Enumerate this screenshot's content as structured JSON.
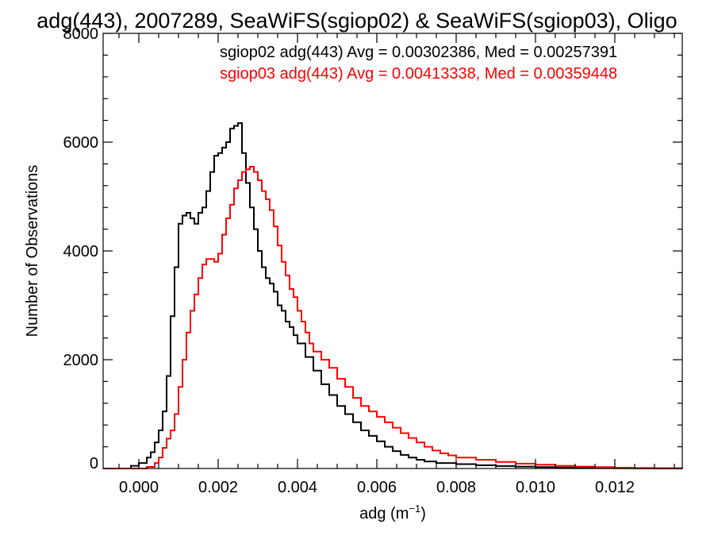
{
  "chart_data": {
    "type": "line",
    "title": "adg(443), 2007289, SeaWiFS(sgiop02) & SeaWiFS(sgiop03), Oligo",
    "xlabel": "adg (m",
    "xlabel_sup": "−1",
    "xlabel_close": ")",
    "ylabel": "Number of Observations",
    "xlim": [
      -0.0009,
      0.0137
    ],
    "ylim": [
      0,
      8000
    ],
    "xticks": [
      0.0,
      0.002,
      0.004,
      0.006,
      0.008,
      0.01,
      0.012
    ],
    "xtick_labels": [
      "0.000",
      "0.002",
      "0.004",
      "0.006",
      "0.008",
      "0.010",
      "0.012"
    ],
    "yticks": [
      0,
      2000,
      4000,
      6000,
      8000
    ],
    "ytick_labels": [
      "0",
      "2000",
      "4000",
      "6000",
      "8000"
    ],
    "grid": false,
    "legend_position": "top-right",
    "series": [
      {
        "name": "sgiop02",
        "annotation": "sgiop02 adg(443) Avg = 0.00302386, Med = 0.00257391",
        "color": "#000000",
        "x": [
          -0.0009,
          -0.0004,
          -0.0002,
          0.0,
          0.0002,
          0.0003,
          0.0004,
          0.0005,
          0.0006,
          0.0007,
          0.0008,
          0.0009,
          0.001,
          0.0011,
          0.0012,
          0.0013,
          0.0014,
          0.0015,
          0.0016,
          0.0017,
          0.0018,
          0.0019,
          0.002,
          0.0021,
          0.0022,
          0.0023,
          0.0024,
          0.0025,
          0.0026,
          0.0027,
          0.0028,
          0.0029,
          0.003,
          0.0031,
          0.0032,
          0.0033,
          0.0034,
          0.0035,
          0.0036,
          0.0037,
          0.0038,
          0.0039,
          0.004,
          0.0042,
          0.0044,
          0.0046,
          0.0048,
          0.005,
          0.0052,
          0.0054,
          0.0056,
          0.0058,
          0.006,
          0.0062,
          0.0064,
          0.0066,
          0.0068,
          0.007,
          0.0072,
          0.0075,
          0.008,
          0.0085,
          0.009,
          0.0095,
          0.01,
          0.0105,
          0.011,
          0.0115,
          0.012,
          0.0125,
          0.013,
          0.0137
        ],
        "y": [
          0,
          0,
          50,
          100,
          200,
          300,
          480,
          700,
          1050,
          1700,
          2800,
          3700,
          4500,
          4650,
          4700,
          4600,
          4500,
          4700,
          4800,
          5100,
          5450,
          5750,
          5800,
          5900,
          6000,
          6250,
          6300,
          6350,
          5800,
          5250,
          4800,
          4400,
          4000,
          3700,
          3500,
          3400,
          3250,
          3000,
          2900,
          2700,
          2600,
          2450,
          2300,
          2050,
          1800,
          1550,
          1350,
          1150,
          1000,
          850,
          700,
          600,
          500,
          400,
          320,
          250,
          200,
          160,
          130,
          100,
          80,
          60,
          45,
          35,
          25,
          18,
          12,
          8,
          5,
          3,
          2,
          0
        ]
      },
      {
        "name": "sgiop03",
        "annotation": "sgiop03 adg(443) Avg = 0.00413338, Med = 0.00359448",
        "color": "#ff0000",
        "x": [
          -0.0009,
          0.0,
          0.0002,
          0.0004,
          0.0005,
          0.0006,
          0.0007,
          0.0008,
          0.0009,
          0.001,
          0.0011,
          0.0012,
          0.0013,
          0.0014,
          0.0015,
          0.0016,
          0.0017,
          0.0018,
          0.0019,
          0.002,
          0.0021,
          0.0022,
          0.0023,
          0.0024,
          0.0025,
          0.0026,
          0.0027,
          0.0028,
          0.0029,
          0.003,
          0.0031,
          0.0032,
          0.0033,
          0.0034,
          0.0035,
          0.0036,
          0.0037,
          0.0038,
          0.0039,
          0.004,
          0.0041,
          0.0042,
          0.0043,
          0.0044,
          0.0046,
          0.0048,
          0.005,
          0.0052,
          0.0054,
          0.0056,
          0.0058,
          0.006,
          0.0062,
          0.0064,
          0.0066,
          0.0068,
          0.007,
          0.0072,
          0.0074,
          0.0076,
          0.0078,
          0.008,
          0.0085,
          0.009,
          0.0095,
          0.01,
          0.0105,
          0.011,
          0.0115,
          0.012,
          0.0125,
          0.013,
          0.0137
        ],
        "y": [
          0,
          0,
          30,
          100,
          200,
          380,
          550,
          700,
          1000,
          1500,
          2000,
          2500,
          2900,
          3200,
          3500,
          3750,
          3850,
          3850,
          3800,
          3950,
          4300,
          4600,
          4850,
          5150,
          5300,
          5450,
          5500,
          5550,
          5450,
          5300,
          5100,
          4950,
          4750,
          4450,
          4100,
          3800,
          3550,
          3300,
          3150,
          2900,
          2700,
          2500,
          2300,
          2150,
          2000,
          1850,
          1650,
          1500,
          1300,
          1150,
          1050,
          950,
          850,
          750,
          650,
          560,
          480,
          400,
          330,
          280,
          240,
          200,
          160,
          120,
          90,
          70,
          50,
          35,
          25,
          15,
          10,
          5,
          0
        ]
      }
    ]
  }
}
